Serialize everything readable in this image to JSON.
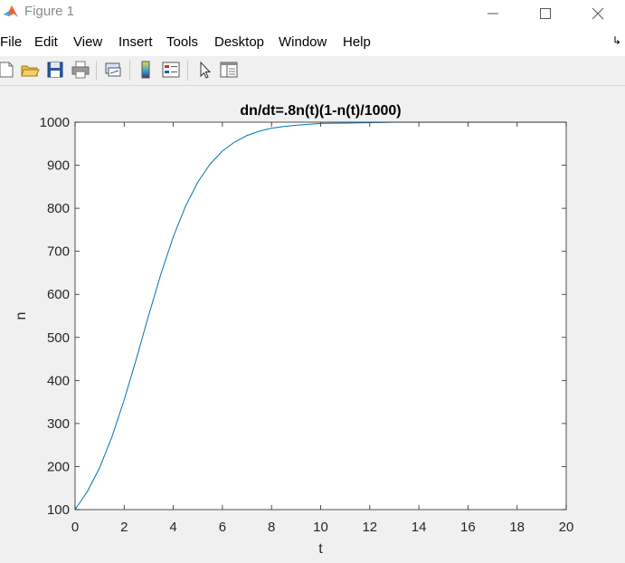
{
  "window": {
    "title": "Figure 1",
    "controls": [
      "minimize",
      "maximize",
      "close"
    ]
  },
  "menu": {
    "items": [
      {
        "label": "File",
        "mnemonic": "F"
      },
      {
        "label": "Edit",
        "mnemonic": "E"
      },
      {
        "label": "View",
        "mnemonic": "V"
      },
      {
        "label": "Insert",
        "mnemonic": "I"
      },
      {
        "label": "Tools",
        "mnemonic": "T"
      },
      {
        "label": "Desktop",
        "mnemonic": "D"
      },
      {
        "label": "Window",
        "mnemonic": "W"
      },
      {
        "label": "Help",
        "mnemonic": "H"
      }
    ]
  },
  "toolbar": {
    "icons": [
      "new-figure-icon",
      "open-file-icon",
      "save-icon",
      "print-icon",
      "link-plot-icon",
      "insert-colorbar-icon",
      "insert-legend-icon",
      "edit-plot-pointer-icon",
      "property-inspector-icon"
    ]
  },
  "chart_data": {
    "type": "line",
    "title": "dn/dt=.8n(t)(1-n(t)/1000)",
    "xlabel": "t",
    "ylabel": "n",
    "xlim": [
      0,
      20
    ],
    "ylim": [
      100,
      1000
    ],
    "xticks": [
      "0",
      "2",
      "4",
      "6",
      "8",
      "10",
      "12",
      "14",
      "16",
      "18",
      "20"
    ],
    "yticks": [
      "100",
      "200",
      "300",
      "400",
      "500",
      "600",
      "700",
      "800",
      "900",
      "1000"
    ],
    "grid": false,
    "colors": {
      "line": "#0072bd",
      "axes": "#262626",
      "plot_bg": "#ffffff"
    },
    "series": [
      {
        "x": [
          0,
          0.5,
          1,
          1.5,
          2,
          2.5,
          3,
          3.5,
          4,
          4.5,
          5,
          5.5,
          6,
          6.5,
          7,
          7.5,
          8,
          8.5,
          9,
          9.5,
          10,
          11,
          12,
          13,
          14,
          15,
          16,
          17,
          18,
          19,
          20
        ],
        "values": [
          100,
          142,
          197,
          269,
          355,
          451,
          552,
          648,
          734,
          805,
          861,
          903,
          933,
          954,
          969,
          979,
          986,
          990,
          993,
          995,
          997,
          998,
          999,
          1000,
          1000,
          1000,
          1000,
          1000,
          1000,
          1000,
          1000
        ]
      }
    ]
  }
}
